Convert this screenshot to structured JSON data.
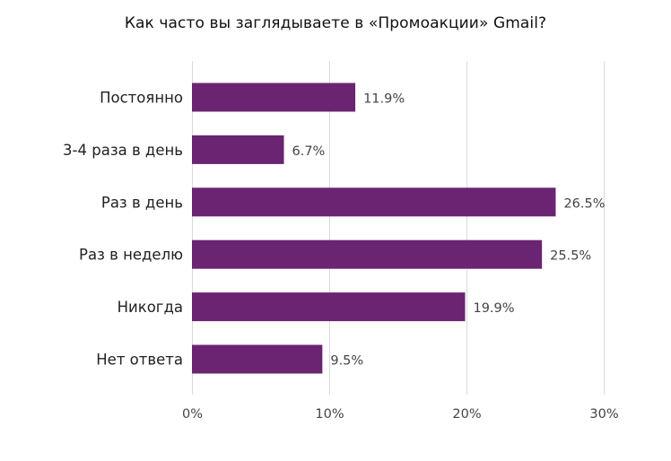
{
  "chart_data": {
    "type": "bar",
    "orientation": "horizontal",
    "title": "Как часто вы заглядываете в «Промоакции» Gmail?",
    "categories": [
      "Постоянно",
      "3-4 раза в день",
      "Раз в день",
      "Раз в неделю",
      "Никогда",
      "Нет ответа"
    ],
    "values": [
      11.9,
      6.7,
      26.5,
      25.5,
      19.9,
      9.5
    ],
    "value_labels": [
      "11.9%",
      "6.7%",
      "26.5%",
      "25.5%",
      "19.9%",
      "9.5%"
    ],
    "xlim": [
      0,
      30
    ],
    "xticks": [
      0,
      10,
      20,
      30
    ],
    "xtick_labels": [
      "0%",
      "10%",
      "20%",
      "30%"
    ],
    "xlabel": "",
    "ylabel": "",
    "grid": "vertical",
    "legend": "none",
    "bar_color": "#6b2472",
    "grid_color": "#d9d9d9"
  }
}
